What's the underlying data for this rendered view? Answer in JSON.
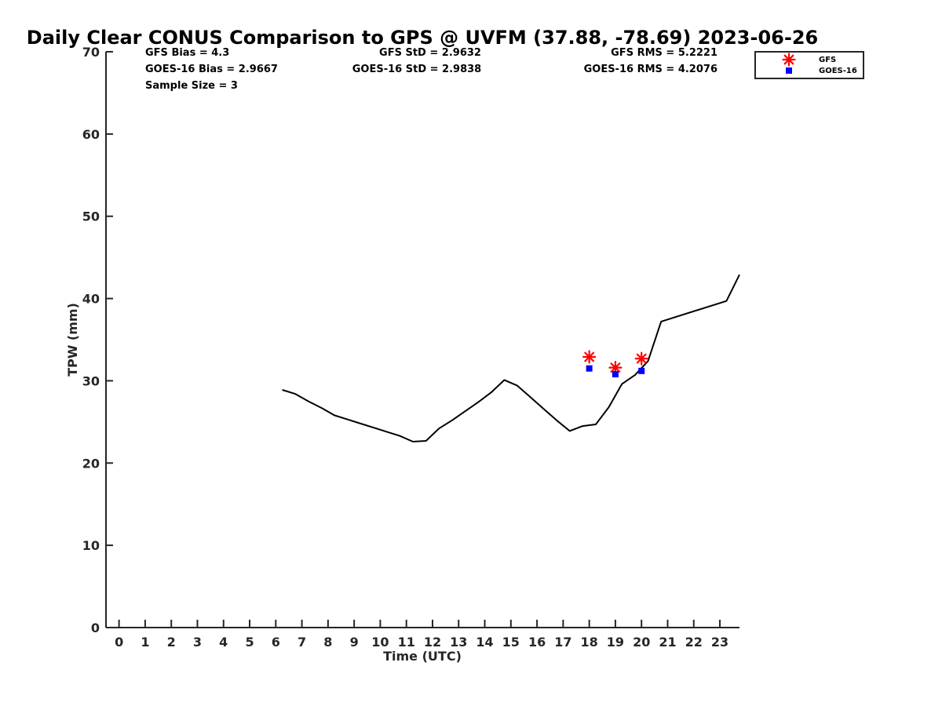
{
  "chart_data": {
    "type": "line",
    "title": "Daily Clear CONUS Comparison to GPS @ UVFM (37.88, -78.69) 2023-06-26",
    "xlabel": "Time (UTC)",
    "ylabel": "TPW (mm)",
    "xlim": [
      -0.5,
      23.75
    ],
    "ylim": [
      0,
      70
    ],
    "x_ticks": [
      "0",
      "1",
      "2",
      "3",
      "4",
      "5",
      "6",
      "7",
      "8",
      "9",
      "10",
      "11",
      "12",
      "13",
      "14",
      "15",
      "16",
      "17",
      "18",
      "19",
      "20",
      "21",
      "22",
      "23"
    ],
    "y_ticks": [
      "0",
      "10",
      "20",
      "30",
      "40",
      "50",
      "60",
      "70"
    ],
    "grid": false,
    "legend_position": "top-right",
    "stats": [
      "GFS Bias = 4.3",
      "GFS StD = 2.9632",
      "GFS RMS = 5.2221",
      "GOES-16 Bias = 2.9667",
      "GOES-16 StD = 2.9838",
      "GOES-16 RMS = 4.2076",
      "Sample Size = 3"
    ],
    "series": [
      {
        "type": "line",
        "color": "#000000",
        "points": [
          [
            6.25,
            28.9
          ],
          [
            6.75,
            28.4
          ],
          [
            7.25,
            27.5
          ],
          [
            7.75,
            26.7
          ],
          [
            8.25,
            25.8
          ],
          [
            8.75,
            25.3
          ],
          [
            9.25,
            24.8
          ],
          [
            9.75,
            24.3
          ],
          [
            10.25,
            23.8
          ],
          [
            10.75,
            23.3
          ],
          [
            11.25,
            22.6
          ],
          [
            11.75,
            22.7
          ],
          [
            12.25,
            24.2
          ],
          [
            12.75,
            25.2
          ],
          [
            13.25,
            26.3
          ],
          [
            13.75,
            27.4
          ],
          [
            14.25,
            28.6
          ],
          [
            14.75,
            30.1
          ],
          [
            15.25,
            29.4
          ],
          [
            15.75,
            28.0
          ],
          [
            16.25,
            26.6
          ],
          [
            16.75,
            25.2
          ],
          [
            17.25,
            23.9
          ],
          [
            17.75,
            24.5
          ],
          [
            18.25,
            24.7
          ],
          [
            18.75,
            26.8
          ],
          [
            19.25,
            29.6
          ],
          [
            19.75,
            30.7
          ],
          [
            20.25,
            32.4
          ],
          [
            20.75,
            37.2
          ],
          [
            23.25,
            39.7
          ],
          [
            23.75,
            42.9
          ]
        ]
      },
      {
        "type": "scatter",
        "name": "GFS",
        "marker": "asterisk",
        "color": "#ff0000",
        "points": [
          [
            18,
            32.9
          ],
          [
            19,
            31.6
          ],
          [
            20,
            32.7
          ]
        ]
      },
      {
        "type": "scatter",
        "name": "GOES-16",
        "marker": "square",
        "color": "#0000ff",
        "points": [
          [
            18,
            31.5
          ],
          [
            19,
            30.8
          ],
          [
            20,
            31.2
          ]
        ]
      }
    ]
  }
}
